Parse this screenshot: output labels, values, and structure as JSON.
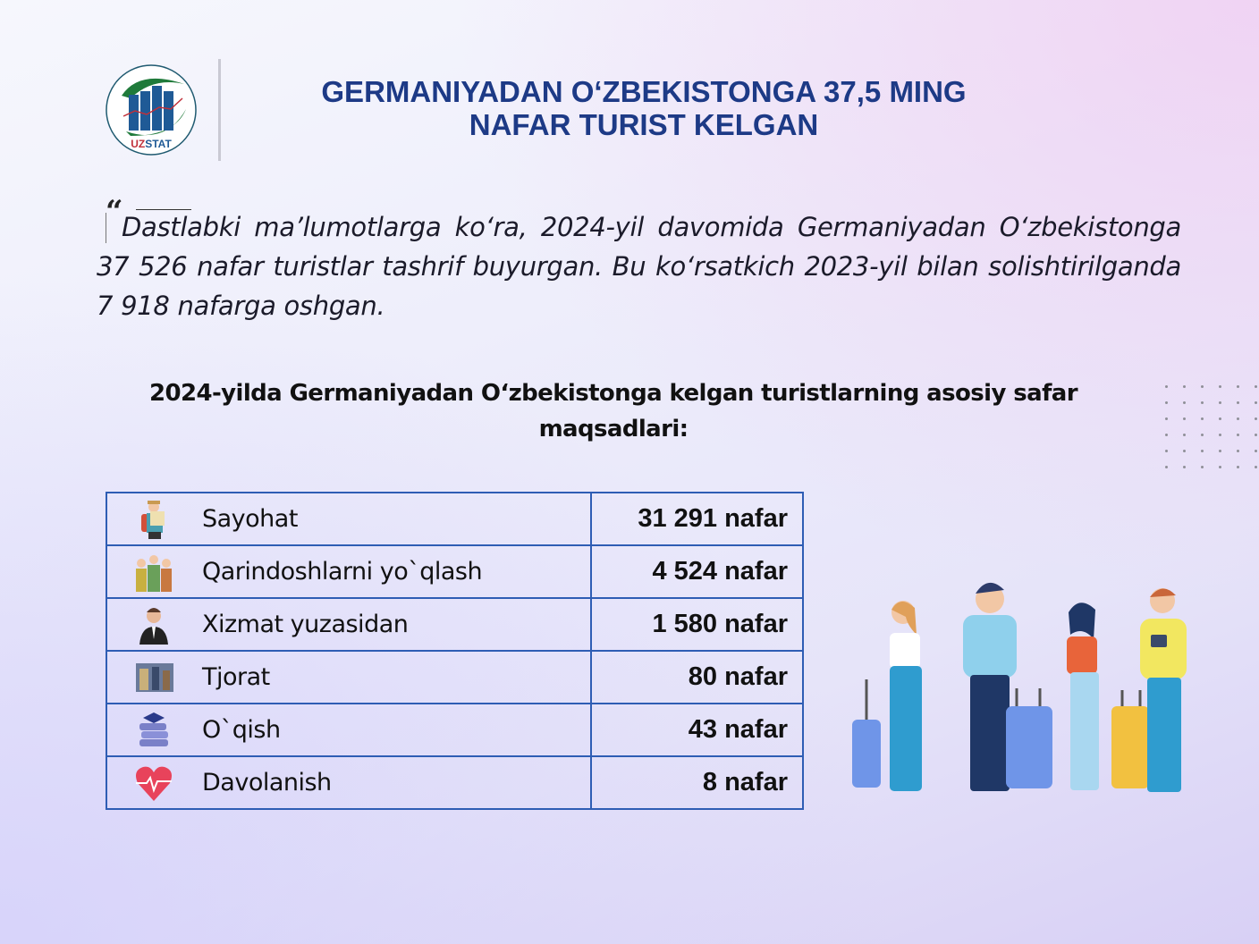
{
  "logo": {
    "text": "UZSTAT"
  },
  "title": {
    "line1": "GERMANIYADAN  O‘ZBEKISTONGA 37,5 MING",
    "line2": "NAFAR TURIST KELGAN"
  },
  "quote": {
    "text": "Dastlabki ma’lumotlarga ko‘ra, 2024-yil davomida  Germaniyadan O‘zbekistonga 37 526 nafar turistlar tashrif buyurgan. Bu ko‘rsatkich 2023-yil bilan solishtirilganda 7 918 nafarga oshgan.",
    "mark": "“"
  },
  "subtitle": "2024-yilda  Germaniyadan O‘zbekistonga kelgan turistlarning asosiy safar maqsadlari:",
  "table": {
    "rows": [
      {
        "icon": "tourist-icon",
        "label": "Sayohat",
        "value": "31 291 nafar"
      },
      {
        "icon": "family-icon",
        "label": "Qarindoshlarni yo`qlash",
        "value": "4 524 nafar"
      },
      {
        "icon": "businessman-icon",
        "label": "Xizmat yuzasidan",
        "value": "1 580 nafar"
      },
      {
        "icon": "trade-icon",
        "label": "Tjorat",
        "value": "80 nafar"
      },
      {
        "icon": "books-icon",
        "label": "O`qish",
        "value": "43 nafar"
      },
      {
        "icon": "heart-pulse-icon",
        "label": "Davolanish",
        "value": "8 nafar"
      }
    ]
  },
  "colors": {
    "title": "#1d3a86",
    "table_border": "#2e5db4",
    "logo_green": "#1f7a3a",
    "logo_blue": "#1f5a96",
    "heart": "#e8435b"
  }
}
